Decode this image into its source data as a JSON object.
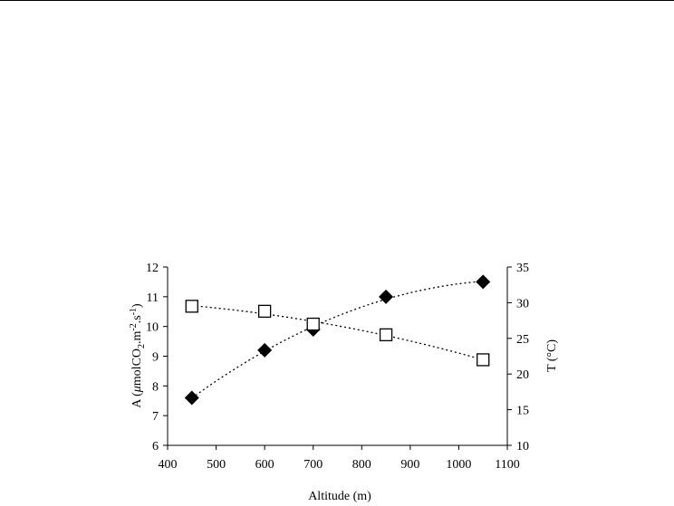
{
  "chart_data": {
    "type": "scatter",
    "xlabel": "Altitude (m)",
    "ylabel_left_parts": [
      "A (",
      "μ",
      "molCO",
      "2",
      ".m",
      "-2",
      ".s",
      "-1",
      ")"
    ],
    "ylabel_right": "T (°C)",
    "xlim": [
      400,
      1100
    ],
    "ylim_left": [
      6,
      12
    ],
    "ylim_right": [
      10,
      35
    ],
    "x_ticks": [
      "400",
      "500",
      "600",
      "700",
      "800",
      "900",
      "1000",
      "1100"
    ],
    "y_left_ticks": [
      "6",
      "7",
      "8",
      "9",
      "10",
      "11",
      "12"
    ],
    "y_right_ticks": [
      "10",
      "15",
      "20",
      "25",
      "30",
      "35"
    ],
    "grid": false,
    "series": [
      {
        "axis": "left",
        "marker": "filled-diamond",
        "color": "#000000",
        "trendline": "dotted polynomial",
        "x": [
          450,
          600,
          700,
          850,
          1050
        ],
        "y": [
          7.6,
          9.2,
          9.9,
          11.0,
          11.5
        ]
      },
      {
        "axis": "right",
        "marker": "open-square",
        "color": "#000000",
        "trendline": "dotted polynomial",
        "x": [
          450,
          600,
          700,
          850,
          1050
        ],
        "y": [
          29.5,
          28.8,
          27.0,
          25.5,
          22.0
        ]
      }
    ]
  }
}
